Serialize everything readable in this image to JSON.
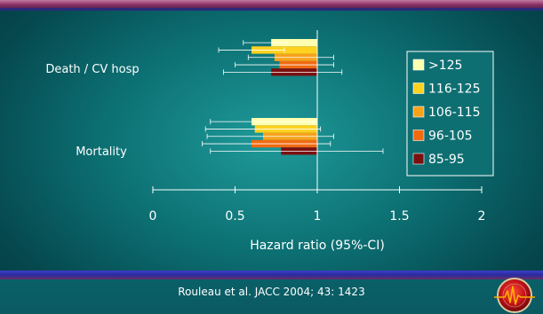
{
  "chart_data": {
    "type": "bar",
    "orientation": "horizontal",
    "title": "",
    "xlabel": "Hazard ratio (95%-CI)",
    "ylabel": "",
    "xlim": [
      0,
      2
    ],
    "xticks": [
      0,
      0.5,
      1,
      1.5,
      2
    ],
    "xtick_labels": [
      "0",
      "0.5",
      "1",
      "1.5",
      "2"
    ],
    "reference_line": 1,
    "grid": false,
    "legend_position": "right",
    "categories": [
      "Death / CV hosp",
      "Mortality"
    ],
    "series": [
      {
        "name": ">125",
        "color": "#ffffb0",
        "values": [
          0.72,
          0.6
        ],
        "ci_low": [
          0.55,
          0.35
        ],
        "ci_high": [
          0.82,
          0.98
        ]
      },
      {
        "name": "116-125",
        "color": "#ffd21f",
        "values": [
          0.6,
          0.62
        ],
        "ci_low": [
          0.4,
          0.32
        ],
        "ci_high": [
          0.8,
          1.02
        ]
      },
      {
        "name": "106-115",
        "color": "#f7a21b",
        "values": [
          0.74,
          0.67
        ],
        "ci_low": [
          0.58,
          0.33
        ],
        "ci_high": [
          1.1,
          1.1
        ]
      },
      {
        "name": "96-105",
        "color": "#f06a12",
        "values": [
          0.77,
          0.6
        ],
        "ci_low": [
          0.5,
          0.3
        ],
        "ci_high": [
          1.1,
          1.08
        ]
      },
      {
        "name": "85-95",
        "color": "#7a1010",
        "values": [
          0.72,
          0.78
        ],
        "ci_low": [
          0.43,
          0.35
        ],
        "ci_high": [
          1.15,
          1.4
        ]
      }
    ]
  },
  "citation": "Rouleau et al. JACC 2004; 43: 1423",
  "colors": {
    "background": "#0c6f72",
    "legend_background": "#0e6f72",
    "text": "#ffffff"
  },
  "logo_icon": "cardiology-heart-seal-icon"
}
